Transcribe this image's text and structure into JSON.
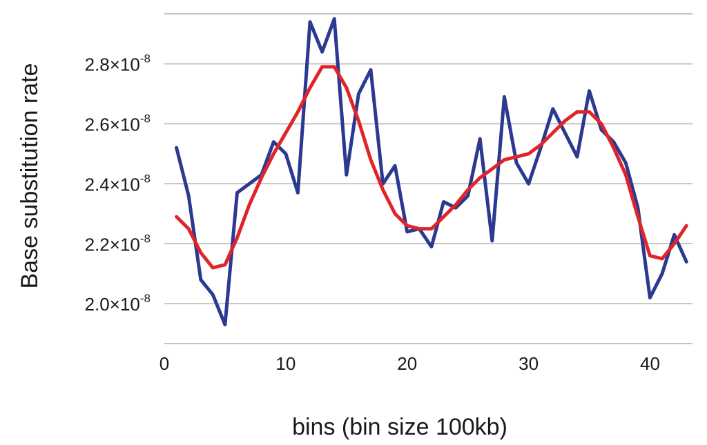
{
  "chart_data": {
    "type": "line",
    "xlabel": "bins (bin size 100kb)",
    "ylabel": "Base substitution rate",
    "xlim": [
      0,
      43.5
    ],
    "ylim": [
      1.867e-08,
      2.967e-08
    ],
    "x_ticks": [
      {
        "value": 0,
        "label": "0"
      },
      {
        "value": 10,
        "label": "10"
      },
      {
        "value": 20,
        "label": "20"
      },
      {
        "value": 30,
        "label": "30"
      },
      {
        "value": 40,
        "label": "40"
      }
    ],
    "y_ticks": [
      {
        "value": 2e-08,
        "mantissa": "2.0×10",
        "exponent": "-8"
      },
      {
        "value": 2.2e-08,
        "mantissa": "2.2×10",
        "exponent": "-8"
      },
      {
        "value": 2.4e-08,
        "mantissa": "2.4×10",
        "exponent": "-8"
      },
      {
        "value": 2.6e-08,
        "mantissa": "2.6×10",
        "exponent": "-8"
      },
      {
        "value": 2.8e-08,
        "mantissa": "2.8×10",
        "exponent": "-8"
      }
    ],
    "grid": "horizontal",
    "series": [
      {
        "color": "#2b3990",
        "x": [
          1,
          2,
          3,
          4,
          5,
          6,
          7,
          8,
          9,
          10,
          11,
          12,
          13,
          14,
          15,
          16,
          17,
          18,
          19,
          20,
          21,
          22,
          23,
          24,
          25,
          26,
          27,
          28,
          29,
          30,
          31,
          32,
          33,
          34,
          35,
          36,
          37,
          38,
          39,
          40,
          41,
          42,
          43
        ],
        "y": [
          2.52e-08,
          2.36e-08,
          2.08e-08,
          2.03e-08,
          1.93e-08,
          2.37e-08,
          2.4e-08,
          2.43e-08,
          2.54e-08,
          2.5e-08,
          2.37e-08,
          2.94e-08,
          2.84e-08,
          2.95e-08,
          2.43e-08,
          2.7e-08,
          2.78e-08,
          2.4e-08,
          2.46e-08,
          2.24e-08,
          2.25e-08,
          2.19e-08,
          2.34e-08,
          2.32e-08,
          2.36e-08,
          2.55e-08,
          2.21e-08,
          2.69e-08,
          2.47e-08,
          2.4e-08,
          2.52e-08,
          2.65e-08,
          2.57e-08,
          2.49e-08,
          2.71e-08,
          2.58e-08,
          2.54e-08,
          2.47e-08,
          2.32e-08,
          2.02e-08,
          2.1e-08,
          2.23e-08,
          2.14e-08
        ]
      },
      {
        "color": "#e0252a",
        "x": [
          1,
          2,
          3,
          4,
          5,
          6,
          7,
          8,
          9,
          10,
          11,
          12,
          13,
          14,
          15,
          16,
          17,
          18,
          19,
          20,
          21,
          22,
          23,
          24,
          25,
          26,
          27,
          28,
          29,
          30,
          31,
          32,
          33,
          34,
          35,
          36,
          37,
          38,
          39,
          40,
          41,
          42,
          43
        ],
        "y": [
          2.29e-08,
          2.25e-08,
          2.17e-08,
          2.12e-08,
          2.13e-08,
          2.22e-08,
          2.33e-08,
          2.42e-08,
          2.5e-08,
          2.57e-08,
          2.64e-08,
          2.72e-08,
          2.79e-08,
          2.79e-08,
          2.72e-08,
          2.61e-08,
          2.48e-08,
          2.38e-08,
          2.3e-08,
          2.26e-08,
          2.25e-08,
          2.25e-08,
          2.29e-08,
          2.33e-08,
          2.38e-08,
          2.42e-08,
          2.45e-08,
          2.48e-08,
          2.49e-08,
          2.5e-08,
          2.53e-08,
          2.57e-08,
          2.61e-08,
          2.64e-08,
          2.64e-08,
          2.6e-08,
          2.52e-08,
          2.43e-08,
          2.29e-08,
          2.16e-08,
          2.15e-08,
          2.2e-08,
          2.26e-08
        ]
      }
    ]
  }
}
